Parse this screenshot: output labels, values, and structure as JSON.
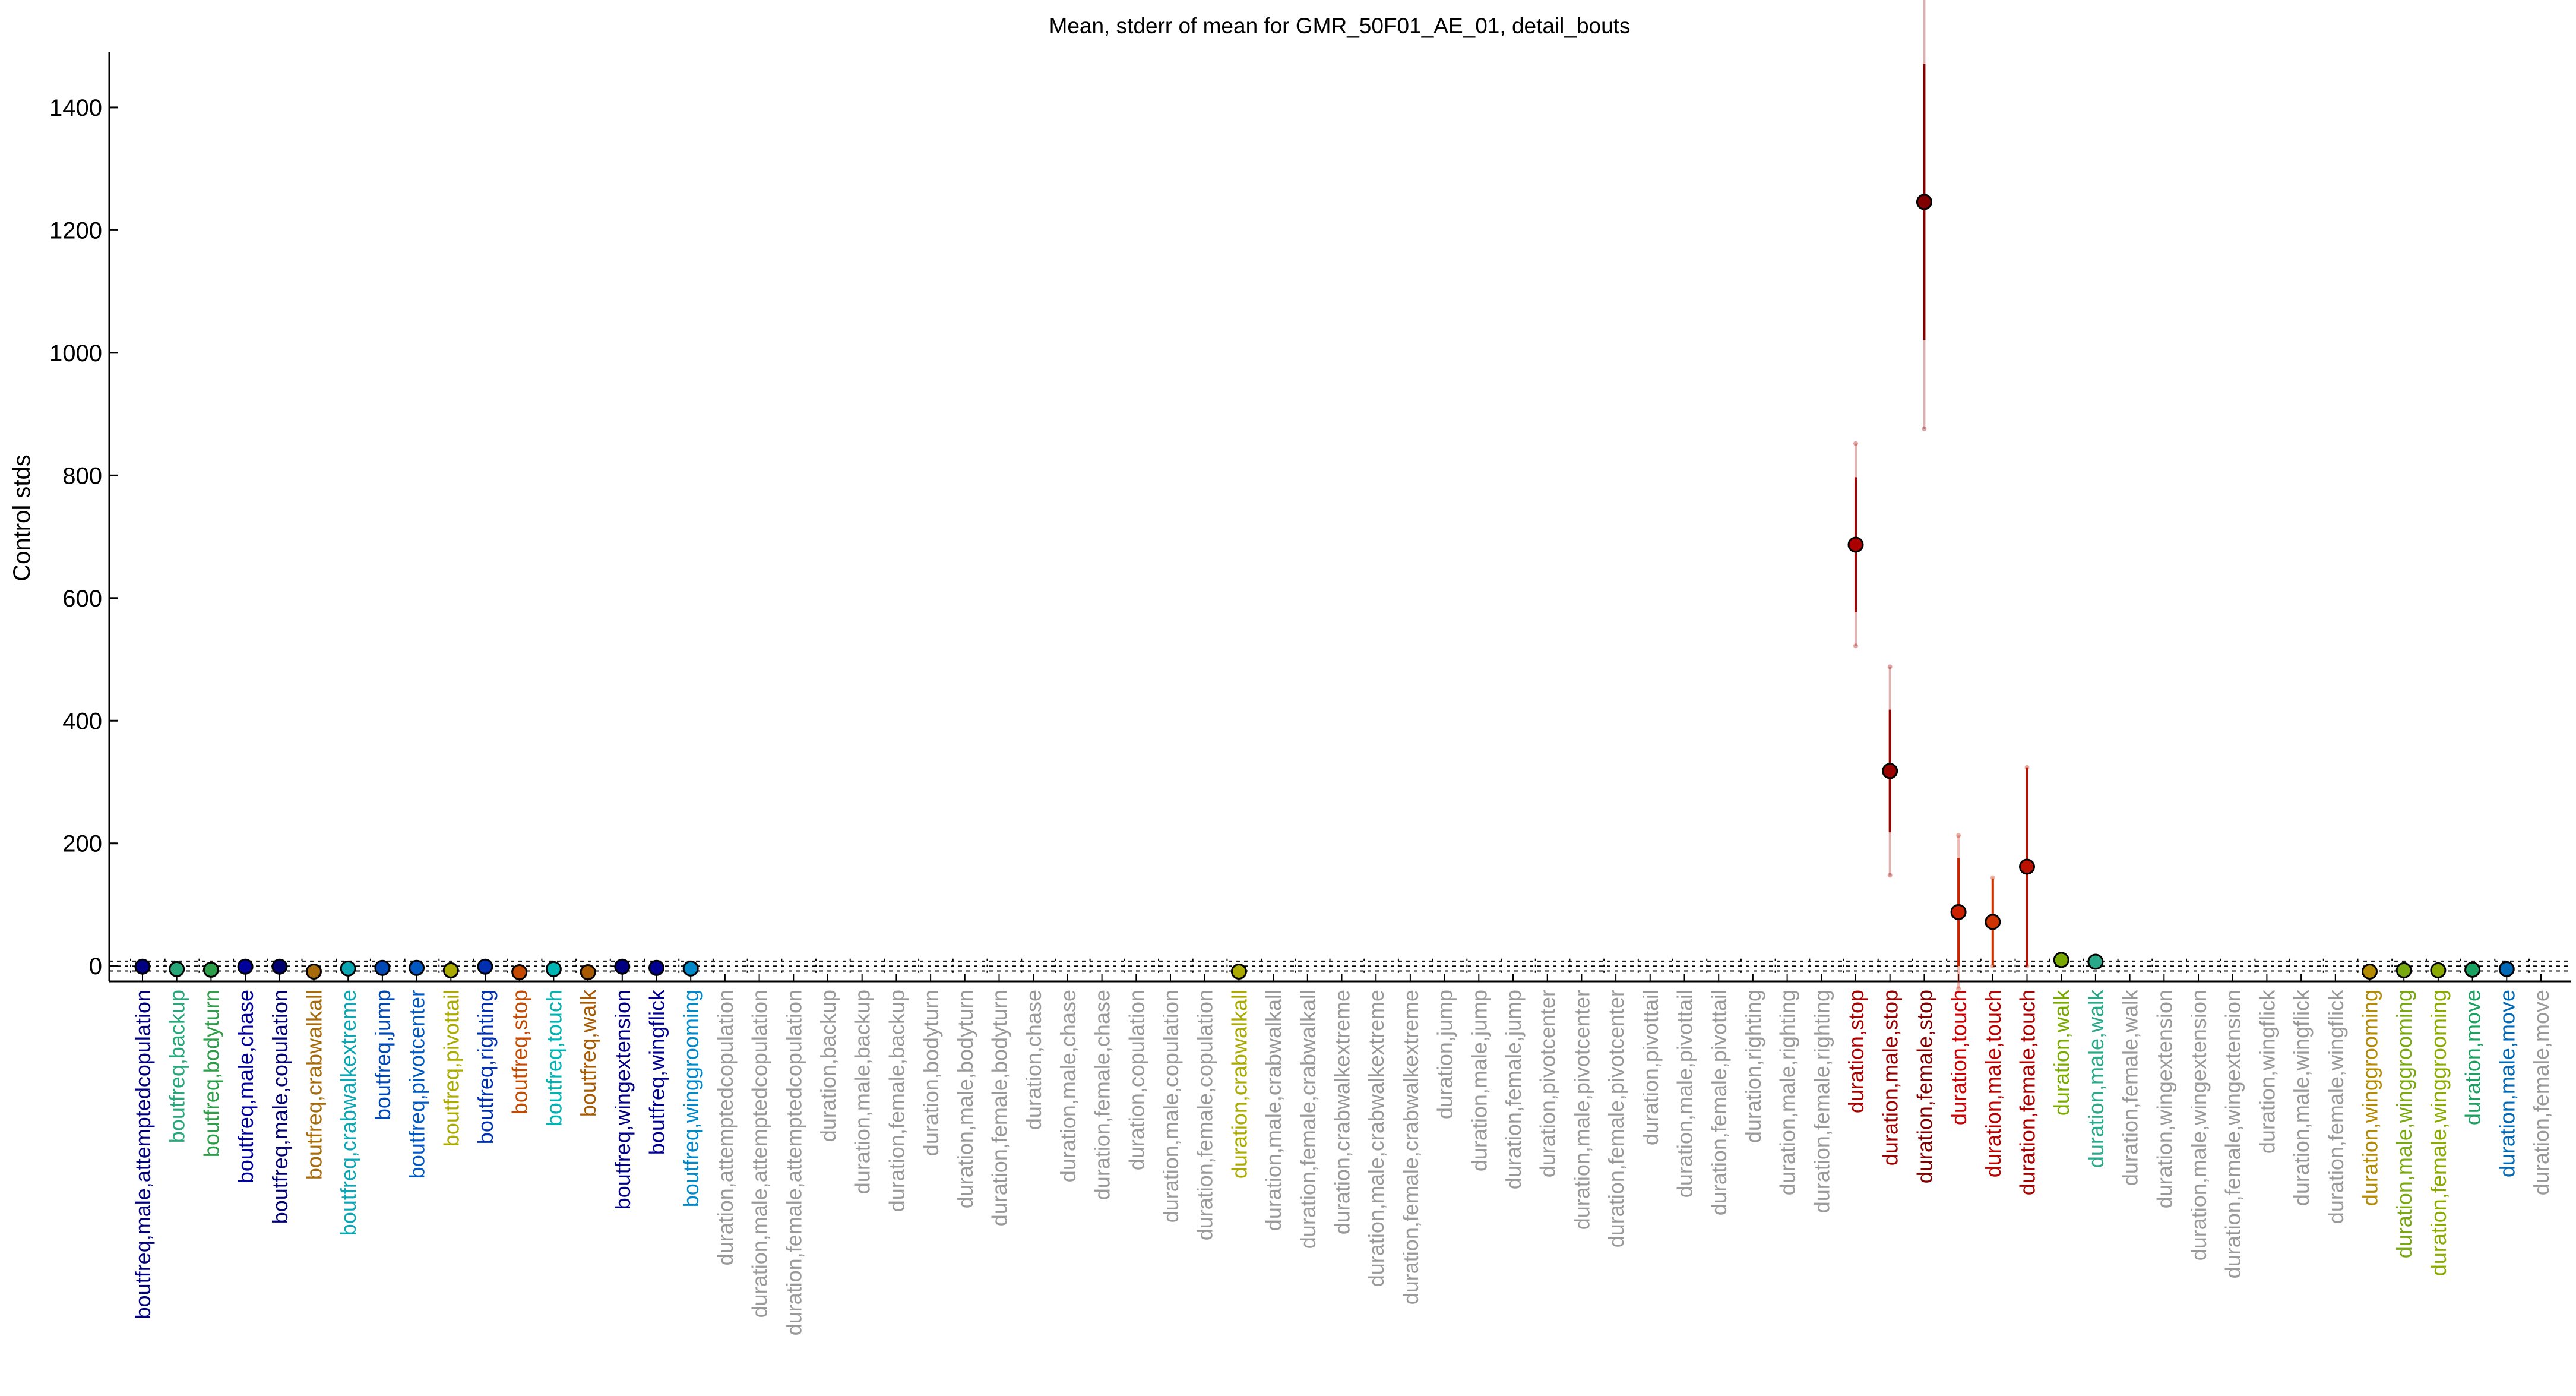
{
  "chart_data": {
    "type": "scatter",
    "title": "Mean, stderr of mean for GMR_50F01_AE_01, detail_bouts",
    "xlabel": "",
    "ylabel": "Control stds",
    "ylim": [
      -25,
      1490
    ],
    "yticks": [
      0,
      200,
      400,
      600,
      800,
      1000,
      1200,
      1400
    ],
    "grid": false,
    "legend": "none",
    "categories": [
      "boutfreq,male,attemptedcopulation",
      "boutfreq,backup",
      "boutfreq,bodyturn",
      "boutfreq,male,chase",
      "boutfreq,male,copulation",
      "boutfreq,crabwalkall",
      "boutfreq,crabwalkextreme",
      "boutfreq,jump",
      "boutfreq,pivotcenter",
      "boutfreq,pivottail",
      "boutfreq,righting",
      "boutfreq,stop",
      "boutfreq,touch",
      "boutfreq,walk",
      "boutfreq,wingextension",
      "boutfreq,wingflick",
      "boutfreq,winggrooming",
      "duration,attemptedcopulation",
      "duration,male,attemptedcopulation",
      "duration,female,attemptedcopulation",
      "duration,backup",
      "duration,male,backup",
      "duration,female,backup",
      "duration,bodyturn",
      "duration,male,bodyturn",
      "duration,female,bodyturn",
      "duration,chase",
      "duration,male,chase",
      "duration,female,chase",
      "duration,copulation",
      "duration,male,copulation",
      "duration,female,copulation",
      "duration,crabwalkall",
      "duration,male,crabwalkall",
      "duration,female,crabwalkall",
      "duration,crabwalkextreme",
      "duration,male,crabwalkextreme",
      "duration,female,crabwalkextreme",
      "duration,jump",
      "duration,male,jump",
      "duration,female,jump",
      "duration,pivotcenter",
      "duration,male,pivotcenter",
      "duration,female,pivotcenter",
      "duration,pivottail",
      "duration,male,pivottail",
      "duration,female,pivottail",
      "duration,righting",
      "duration,male,righting",
      "duration,female,righting",
      "duration,stop",
      "duration,male,stop",
      "duration,female,stop",
      "duration,touch",
      "duration,male,touch",
      "duration,female,touch",
      "duration,walk",
      "duration,male,walk",
      "duration,female,walk",
      "duration,wingextension",
      "duration,male,wingextension",
      "duration,female,wingextension",
      "duration,wingflick",
      "duration,male,wingflick",
      "duration,female,wingflick",
      "duration,winggrooming",
      "duration,male,winggrooming",
      "duration,female,winggrooming",
      "duration,move",
      "duration,male,move",
      "duration,female,move"
    ],
    "label_colors": [
      "#00007a",
      "#27a779",
      "#2f9e4a",
      "#00009a",
      "#000070",
      "#a86b0a",
      "#0aa6b4",
      "#0048b4",
      "#0058c0",
      "#aaaa00",
      "#0030b0",
      "#c44a00",
      "#00b4b4",
      "#a85a00",
      "#000080",
      "#000090",
      "#0088c8",
      "#999999",
      "#999999",
      "#999999",
      "#999999",
      "#999999",
      "#999999",
      "#999999",
      "#999999",
      "#999999",
      "#999999",
      "#999999",
      "#999999",
      "#999999",
      "#999999",
      "#999999",
      "#aaaa00",
      "#999999",
      "#999999",
      "#999999",
      "#999999",
      "#999999",
      "#999999",
      "#999999",
      "#999999",
      "#999999",
      "#999999",
      "#999999",
      "#999999",
      "#999999",
      "#999999",
      "#999999",
      "#999999",
      "#999999",
      "#aa0000",
      "#990000",
      "#800000",
      "#cc0000",
      "#bb0000",
      "#aa0000",
      "#7aaa00",
      "#2aa88a",
      "#999999",
      "#999999",
      "#999999",
      "#999999",
      "#999999",
      "#999999",
      "#999999",
      "#b48a00",
      "#78aa10",
      "#8aaa00",
      "#1aa060",
      "#0068b4",
      "#999999"
    ],
    "series": [
      {
        "points": [
          {
            "category": "boutfreq,male,attemptedcopulation",
            "mean": -1,
            "sem": 1,
            "color": "#000080"
          },
          {
            "category": "boutfreq,backup",
            "mean": -5,
            "sem": 1,
            "color": "#27a779"
          },
          {
            "category": "boutfreq,bodyturn",
            "mean": -6,
            "sem": 1,
            "color": "#2f9e4a"
          },
          {
            "category": "boutfreq,male,chase",
            "mean": -1,
            "sem": 1,
            "color": "#00009a"
          },
          {
            "category": "boutfreq,male,copulation",
            "mean": -1,
            "sem": 1,
            "color": "#000070"
          },
          {
            "category": "boutfreq,crabwalkall",
            "mean": -9,
            "sem": 1,
            "color": "#a86b0a"
          },
          {
            "category": "boutfreq,crabwalkextreme",
            "mean": -4,
            "sem": 1,
            "color": "#0aa6b4"
          },
          {
            "category": "boutfreq,jump",
            "mean": -3,
            "sem": 1,
            "color": "#0048b4"
          },
          {
            "category": "boutfreq,pivotcenter",
            "mean": -3,
            "sem": 1,
            "color": "#0058c0"
          },
          {
            "category": "boutfreq,pivottail",
            "mean": -7,
            "sem": 1,
            "color": "#aaaa00"
          },
          {
            "category": "boutfreq,righting",
            "mean": -1,
            "sem": 1,
            "color": "#0030b0"
          },
          {
            "category": "boutfreq,stop",
            "mean": -10,
            "sem": 1,
            "color": "#c44a00"
          },
          {
            "category": "boutfreq,touch",
            "mean": -5,
            "sem": 1,
            "color": "#00b4b4"
          },
          {
            "category": "boutfreq,walk",
            "mean": -10,
            "sem": 1,
            "color": "#a85a00"
          },
          {
            "category": "boutfreq,wingextension",
            "mean": -1,
            "sem": 1,
            "color": "#000080"
          },
          {
            "category": "boutfreq,wingflick",
            "mean": -3,
            "sem": 1,
            "color": "#000090"
          },
          {
            "category": "boutfreq,winggrooming",
            "mean": -4,
            "sem": 1,
            "color": "#0088c8"
          },
          {
            "category": "duration,crabwalkall",
            "mean": -9,
            "sem": 1,
            "color": "#aaaa00"
          },
          {
            "category": "duration,stop",
            "mean": 687,
            "sem": 110,
            "sem2": 165,
            "color": "#aa0000"
          },
          {
            "category": "duration,male,stop",
            "mean": 318,
            "sem": 100,
            "sem2": 170,
            "color": "#990000"
          },
          {
            "category": "duration,female,stop",
            "mean": 1246,
            "sem": 225,
            "sem2": 370,
            "color": "#800000"
          },
          {
            "category": "duration,touch",
            "mean": 88,
            "sem": 88,
            "sem2": 125,
            "color": "#cc2200"
          },
          {
            "category": "duration,male,touch",
            "mean": 72,
            "sem": 70,
            "sem2": 72,
            "color": "#cc3300"
          },
          {
            "category": "duration,female,touch",
            "mean": 162,
            "sem": 162,
            "sem2": 162,
            "color": "#bb1100"
          },
          {
            "category": "duration,walk",
            "mean": 10,
            "sem": 2,
            "color": "#7aaa00"
          },
          {
            "category": "duration,male,walk",
            "mean": 7,
            "sem": 2,
            "color": "#2aa88a"
          },
          {
            "category": "duration,winggrooming",
            "mean": -9,
            "sem": 1,
            "color": "#b48a00"
          },
          {
            "category": "duration,male,winggrooming",
            "mean": -7,
            "sem": 1,
            "color": "#78aa10"
          },
          {
            "category": "duration,female,winggrooming",
            "mean": -7,
            "sem": 1,
            "color": "#8aaa00"
          },
          {
            "category": "duration,move",
            "mean": -6,
            "sem": 1,
            "color": "#1aa060"
          },
          {
            "category": "duration,male,move",
            "mean": -5,
            "sem": 1,
            "color": "#0068b4"
          }
        ]
      }
    ]
  }
}
